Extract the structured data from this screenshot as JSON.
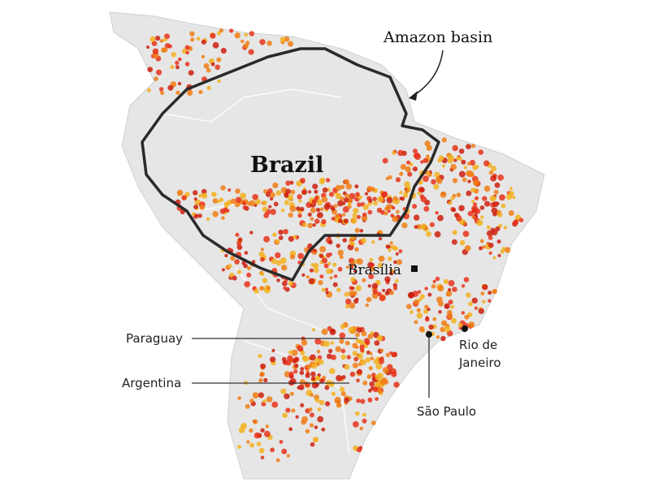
{
  "labels": {
    "basin": "Amazon basin",
    "country": "Brazil",
    "capital": "Brasília",
    "cities": [
      {
        "name_lines": [
          "Rio de",
          "Janeiro"
        ]
      },
      {
        "name_lines": [
          "São Paulo"
        ]
      }
    ],
    "neighbours": [
      "Paraguay",
      "Argentina"
    ]
  }
}
